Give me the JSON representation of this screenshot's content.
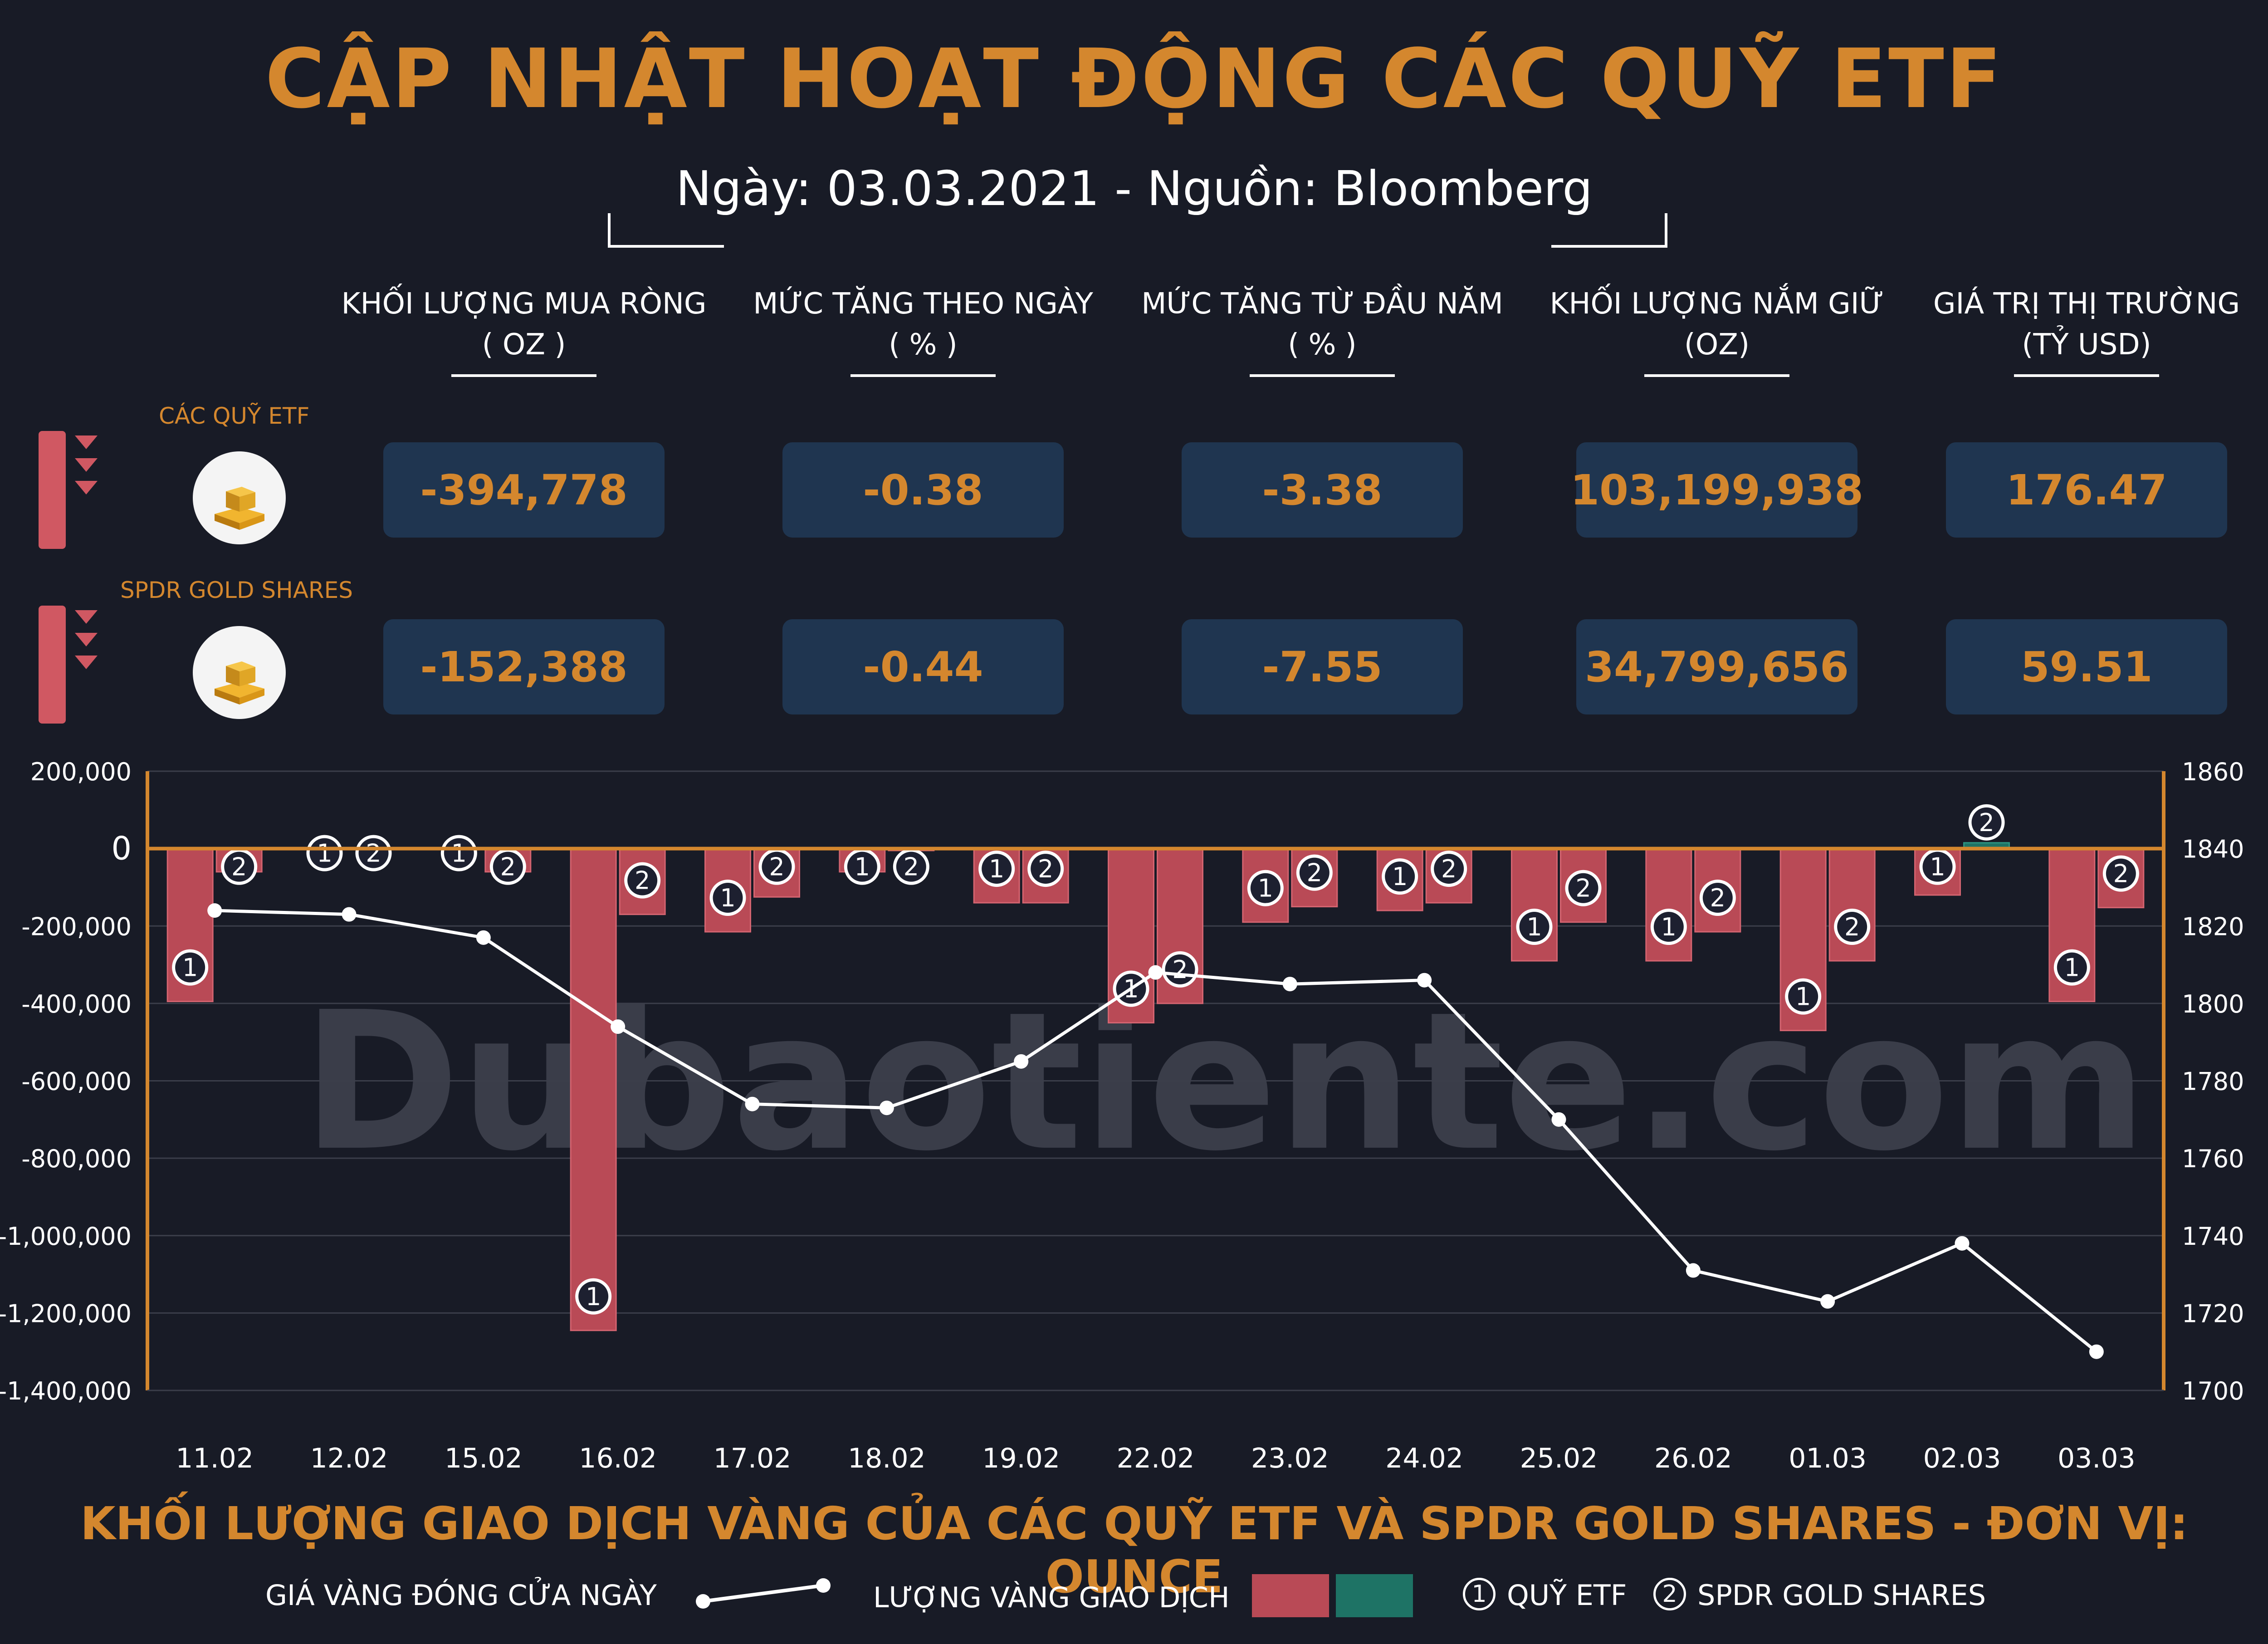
{
  "header": {
    "title": "CẬP NHẬT HOẠT ĐỘNG CÁC QUỸ ETF",
    "subtitle": "Ngày: 03.03.2021 - Nguồn: Bloomberg"
  },
  "columns": [
    {
      "label": "KHỐI LƯỢNG MUA RÒNG",
      "unit": "( OZ )"
    },
    {
      "label": "MỨC TĂNG THEO NGÀY",
      "unit": "( % )"
    },
    {
      "label": "MỨC TĂNG TỪ ĐẦU NĂM",
      "unit": "( % )"
    },
    {
      "label": "KHỐI LƯỢNG NẮM GIỮ",
      "unit": "(OZ)"
    },
    {
      "label": "GIÁ TRỊ THỊ TRƯỜNG",
      "unit": "(TỶ USD)"
    }
  ],
  "rows": [
    {
      "name": "CÁC QUỸ ETF",
      "values": [
        "-394,778",
        "-0.38",
        "-3.38",
        "103,199,938",
        "176.47"
      ]
    },
    {
      "name": "SPDR GOLD SHARES",
      "values": [
        "-152,388",
        "-0.44",
        "-7.55",
        "34,799,656",
        "59.51"
      ]
    }
  ],
  "colors": {
    "accent": "#d4872e",
    "down_bar": "#b94a56",
    "up_bar": "#1e7365",
    "stat_box": "#1f3550",
    "background": "#181b26"
  },
  "watermark": "Dubaotiente.com",
  "chart_data": {
    "type": "bar",
    "title": "KHỐI LƯỢNG GIAO DỊCH VÀNG CỦA CÁC QUỸ ETF VÀ SPDR GOLD SHARES - ĐƠN VỊ: OUNCE",
    "categories": [
      "11.02",
      "12.02",
      "15.02",
      "16.02",
      "17.02",
      "18.02",
      "19.02",
      "22.02",
      "23.02",
      "24.02",
      "25.02",
      "26.02",
      "01.03",
      "02.03",
      "03.03"
    ],
    "y_left": {
      "min": -1400000,
      "max": 200000,
      "ticks": [
        "200,000",
        "0",
        "-200,000",
        "-400,000",
        "-600,000",
        "-800,000",
        "-1,000,000",
        "-1,200,000",
        "-1,400,000"
      ]
    },
    "y_right": {
      "min": 1700,
      "max": 1860,
      "ticks": [
        "1860",
        "1840",
        "1820",
        "1800",
        "1780",
        "1760",
        "1740",
        "1720",
        "1700"
      ]
    },
    "series": [
      {
        "name": "QUỸ ETF",
        "marker": "1",
        "values": [
          -395000,
          0,
          0,
          -1245000,
          -215000,
          -60000,
          -140000,
          -450000,
          -190000,
          -160000,
          -290000,
          -290000,
          -470000,
          -120000,
          -395000
        ]
      },
      {
        "name": "SPDR GOLD SHARES",
        "marker": "2",
        "values": [
          -60000,
          0,
          -60000,
          -170000,
          -125000,
          -5000,
          -140000,
          -400000,
          -150000,
          -140000,
          -190000,
          -215000,
          -290000,
          15000,
          -152388
        ]
      }
    ],
    "line_series": {
      "name": "GIÁ VÀNG ĐÓNG CỬA NGÀY",
      "values": [
        1824,
        1823,
        1817,
        1794,
        1774,
        1773,
        1785,
        1808,
        1805,
        1806,
        1770,
        1731,
        1723,
        1738,
        1710
      ]
    },
    "grid": true
  },
  "legend": {
    "line_label": "GIÁ VÀNG ĐÓNG CỬA NGÀY",
    "bars_label": "LƯỢNG VÀNG GIAO DỊCH",
    "marker1_num": "1",
    "marker1_label": "QUỸ ETF",
    "marker2_num": "2",
    "marker2_label": "SPDR GOLD SHARES"
  }
}
